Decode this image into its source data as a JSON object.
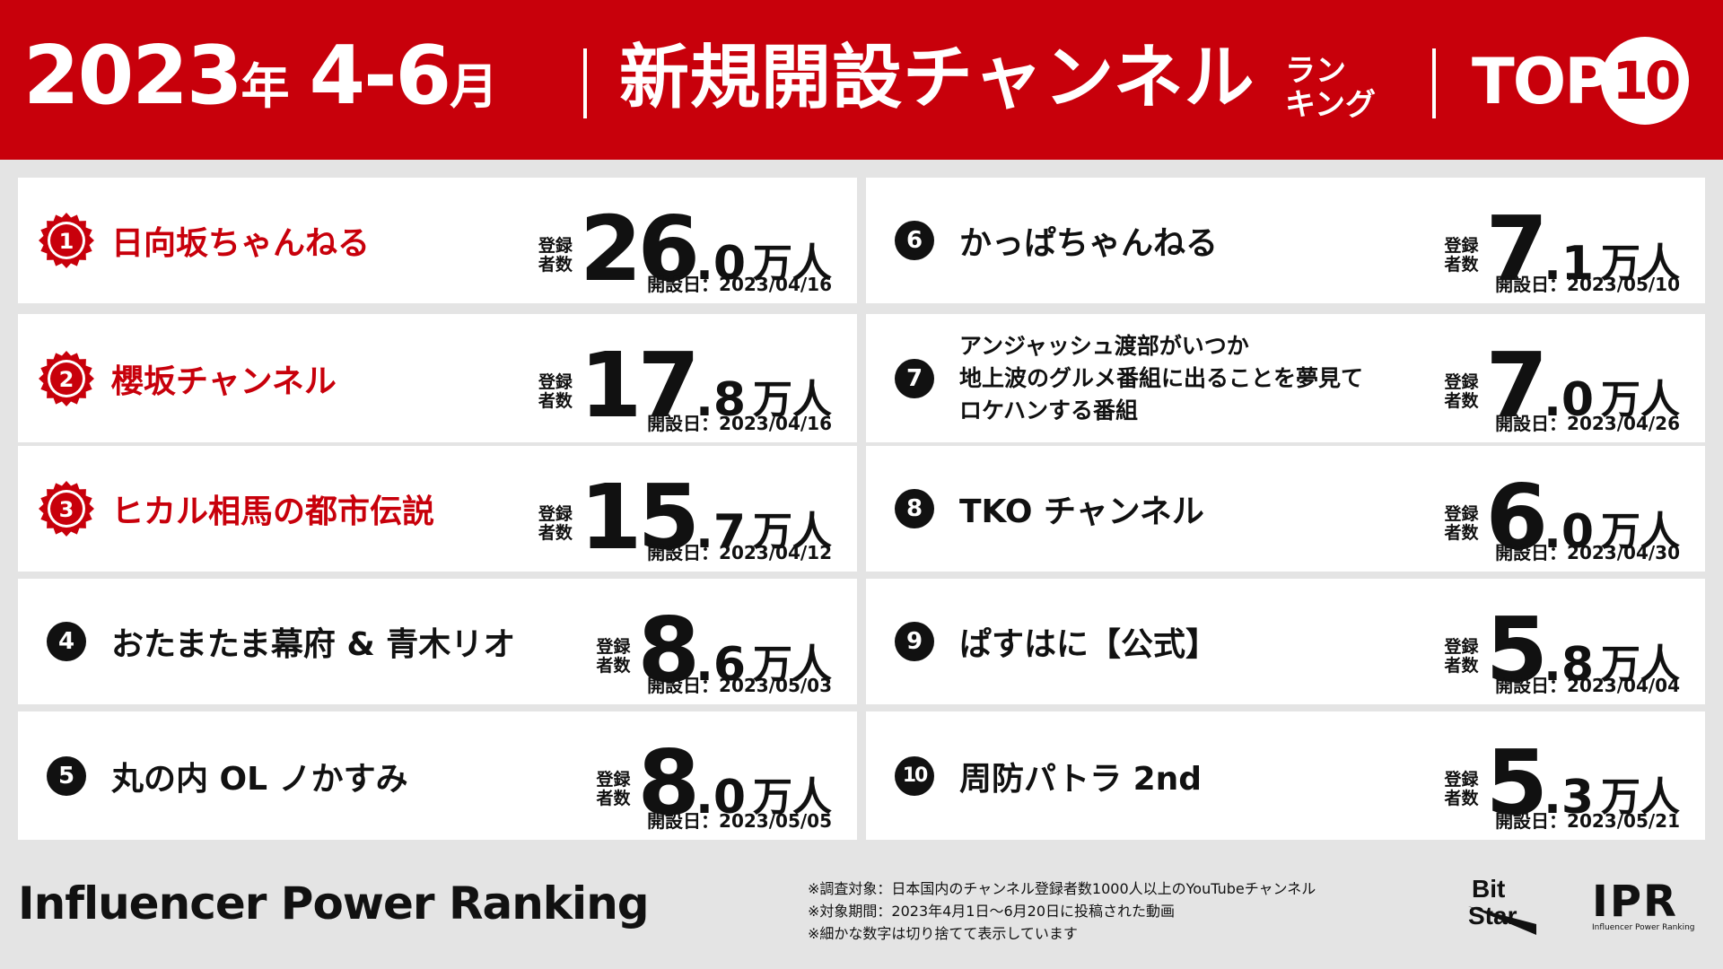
{
  "header": {
    "year": "2023",
    "year_suffix": "年",
    "months_num": "4-6",
    "months_suffix": "月",
    "title": "新規開設チャンネル",
    "subtitle_line1": "ラン",
    "subtitle_line2": "キング",
    "top_label": "TOP",
    "top_number": "10"
  },
  "labels": {
    "subscribers_line1": "登録",
    "subscribers_line2": "者数",
    "unit": "万人"
  },
  "rankings": [
    {
      "rank": "1",
      "name": "日向坂ちゃんねる",
      "int": "26",
      "dec": ".0",
      "date": "開設日：2023/04/16"
    },
    {
      "rank": "2",
      "name": "櫻坂チャンネル",
      "int": "17",
      "dec": ".8",
      "date": "開設日：2023/04/16"
    },
    {
      "rank": "3",
      "name": "ヒカル相馬の都市伝説",
      "int": "15",
      "dec": ".7",
      "date": "開設日：2023/04/12"
    },
    {
      "rank": "4",
      "name": "おたまたま幕府 & 青木リオ",
      "int": "8",
      "dec": ".6",
      "date": "開設日：2023/05/03"
    },
    {
      "rank": "5",
      "name": "丸の内 OL ノかすみ",
      "int": "8",
      "dec": ".0",
      "date": "開設日：2023/05/05"
    },
    {
      "rank": "6",
      "name": "かっぱちゃんねる",
      "int": "7",
      "dec": ".1",
      "date": "開設日：2023/05/10"
    },
    {
      "rank": "7",
      "name_lines": [
        "アンジャッシュ渡部がいつか",
        "地上波のグルメ番組に出ることを夢見て",
        "ロケハンする番組"
      ],
      "int": "7",
      "dec": ".0",
      "date": "開設日：2023/04/26"
    },
    {
      "rank": "8",
      "name": "TKO チャンネル",
      "int": "6",
      "dec": ".0",
      "date": "開設日：2023/04/30"
    },
    {
      "rank": "9",
      "name": "ぱすはに【公式】",
      "int": "5",
      "dec": ".8",
      "date": "開設日：2023/04/04"
    },
    {
      "rank": "10",
      "name": "周防パトラ 2nd",
      "int": "5",
      "dec": ".3",
      "date": "開設日：2023/05/21"
    }
  ],
  "footer": {
    "brand": "Influencer Power Ranking",
    "notes": [
      "※調査対象：日本国内のチャンネル登録者数1000人以上のYouTubeチャンネル",
      "※対象期間：2023年4月1日〜6月20日に投稿された動画",
      "※細かな数字は切り捨てて表示しています"
    ],
    "bitstar_line1": "Bit",
    "bitstar_line2": "Star",
    "ipr_mark": "IPR",
    "ipr_sub": "Influencer Power Ranking"
  },
  "colors": {
    "accent_red": "#c8000b",
    "background": "#e4e4e4",
    "card": "#ffffff",
    "text": "#111111"
  }
}
